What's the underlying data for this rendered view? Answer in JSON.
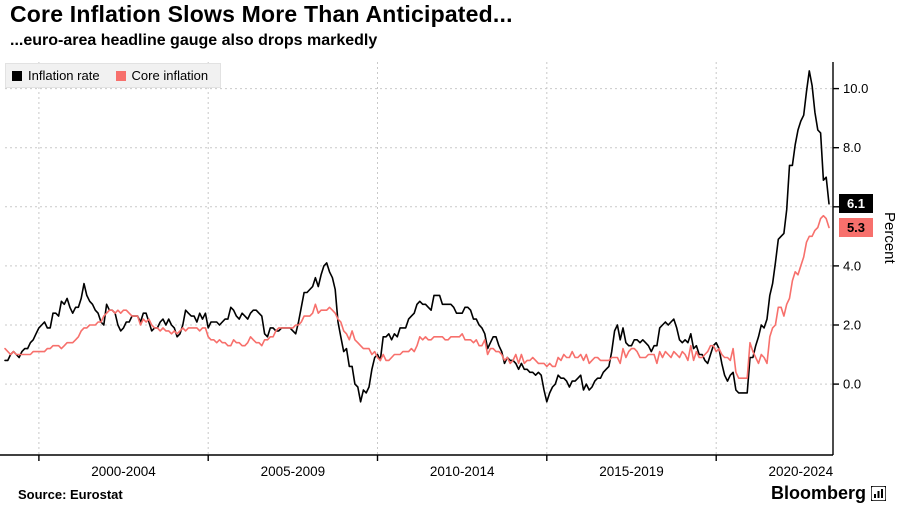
{
  "footer": {
    "source": "Source: Eurostat",
    "brand": "Bloomberg"
  },
  "chart_data": {
    "type": "line",
    "title": "Core Inflation Slows More Than Anticipated...",
    "subtitle": "...euro-area headline gauge also drops markedly",
    "ylabel": "Percent",
    "xlabel": "",
    "grid": true,
    "legend_position": "top-left",
    "x_start": 1999.0,
    "x_frequency": "monthly",
    "xlim": [
      1999.0,
      2023.45
    ],
    "ylim": [
      -2.4,
      10.9
    ],
    "yticks": [
      0,
      2,
      4,
      6,
      8,
      10
    ],
    "ytick_labels": [
      "0.0",
      "2.0",
      "4.0",
      "6.0",
      "8.0",
      "10.0"
    ],
    "xtick_boundaries": [
      2000,
      2005,
      2010,
      2015,
      2020
    ],
    "xtick_labels": [
      "2000-2004",
      "2005-2009",
      "2010-2014",
      "2015-2019",
      "2020-2024"
    ],
    "series": [
      {
        "name": "Inflation rate",
        "color": "#000000",
        "end_label": "6.1",
        "end_label_bg": "#000000",
        "end_label_fg": "#ffffff",
        "values": [
          0.8,
          0.8,
          1.0,
          1.1,
          1.0,
          0.9,
          1.1,
          1.2,
          1.2,
          1.4,
          1.5,
          1.7,
          1.9,
          2.0,
          2.1,
          1.9,
          1.9,
          2.4,
          2.4,
          2.3,
          2.8,
          2.7,
          2.9,
          2.6,
          2.4,
          2.6,
          2.6,
          2.9,
          3.4,
          3.0,
          2.8,
          2.7,
          2.5,
          2.4,
          2.1,
          2.0,
          2.7,
          2.5,
          2.5,
          2.4,
          2.0,
          1.8,
          1.9,
          2.1,
          2.1,
          2.3,
          2.3,
          2.3,
          2.1,
          2.4,
          2.4,
          2.1,
          1.8,
          1.9,
          1.9,
          2.1,
          2.2,
          2.0,
          2.2,
          2.0,
          1.9,
          1.6,
          1.7,
          2.0,
          2.5,
          2.4,
          2.3,
          2.3,
          2.1,
          2.4,
          2.2,
          2.4,
          1.9,
          2.1,
          2.1,
          2.1,
          2.0,
          2.1,
          2.2,
          2.2,
          2.6,
          2.5,
          2.3,
          2.2,
          2.4,
          2.3,
          2.2,
          2.4,
          2.5,
          2.5,
          2.4,
          2.3,
          1.7,
          1.6,
          1.9,
          1.9,
          1.8,
          1.8,
          1.9,
          1.9,
          1.9,
          1.9,
          1.8,
          1.7,
          2.1,
          2.6,
          3.1,
          3.1,
          3.2,
          3.3,
          3.6,
          3.3,
          3.7,
          4.0,
          4.1,
          3.8,
          3.6,
          3.2,
          2.1,
          1.6,
          1.1,
          1.2,
          0.6,
          0.6,
          0.0,
          -0.1,
          -0.6,
          -0.2,
          -0.3,
          -0.1,
          0.5,
          0.9,
          1.0,
          0.8,
          1.6,
          1.6,
          1.7,
          1.5,
          1.7,
          1.6,
          1.9,
          1.9,
          1.9,
          2.2,
          2.3,
          2.4,
          2.7,
          2.8,
          2.7,
          2.7,
          2.6,
          2.5,
          3.0,
          3.0,
          3.0,
          2.7,
          2.7,
          2.7,
          2.7,
          2.6,
          2.4,
          2.4,
          2.4,
          2.6,
          2.6,
          2.5,
          2.2,
          2.2,
          2.0,
          1.9,
          1.7,
          1.2,
          1.4,
          1.6,
          1.6,
          1.3,
          1.1,
          0.7,
          0.9,
          0.8,
          0.8,
          0.7,
          0.5,
          0.7,
          0.5,
          0.5,
          0.4,
          0.4,
          0.3,
          0.4,
          0.3,
          -0.2,
          -0.6,
          -0.3,
          -0.1,
          0.0,
          0.3,
          0.2,
          0.2,
          0.1,
          -0.1,
          0.1,
          0.1,
          0.2,
          0.3,
          -0.2,
          0.0,
          -0.2,
          -0.1,
          0.1,
          0.2,
          0.2,
          0.4,
          0.5,
          0.6,
          1.1,
          1.8,
          2.0,
          1.5,
          1.9,
          1.4,
          1.3,
          1.3,
          1.5,
          1.5,
          1.4,
          1.5,
          1.4,
          1.3,
          1.1,
          1.3,
          1.3,
          1.9,
          2.0,
          2.1,
          2.0,
          2.1,
          2.2,
          1.9,
          1.5,
          1.4,
          1.5,
          1.4,
          1.7,
          1.2,
          1.3,
          1.0,
          1.0,
          0.8,
          0.7,
          1.0,
          1.3,
          1.4,
          1.2,
          0.7,
          0.3,
          0.1,
          0.3,
          0.4,
          -0.2,
          -0.3,
          -0.3,
          -0.3,
          -0.3,
          0.9,
          0.9,
          1.3,
          1.6,
          2.0,
          1.9,
          2.2,
          3.0,
          3.4,
          4.1,
          4.9,
          5.0,
          5.1,
          5.9,
          7.4,
          7.4,
          8.1,
          8.6,
          8.9,
          9.1,
          9.9,
          10.6,
          10.1,
          9.2,
          8.6,
          8.5,
          6.9,
          7.0,
          6.1
        ]
      },
      {
        "name": "Core inflation",
        "color": "#f7706c",
        "end_label": "5.3",
        "end_label_bg": "#f7706c",
        "end_label_fg": "#000000",
        "values": [
          1.2,
          1.1,
          1.0,
          1.1,
          1.0,
          1.0,
          1.0,
          1.0,
          1.0,
          1.0,
          1.1,
          1.1,
          1.1,
          1.1,
          1.1,
          1.2,
          1.2,
          1.3,
          1.3,
          1.3,
          1.2,
          1.3,
          1.4,
          1.4,
          1.4,
          1.5,
          1.6,
          1.8,
          1.9,
          1.9,
          2.0,
          2.0,
          2.0,
          2.1,
          2.1,
          2.3,
          2.4,
          2.5,
          2.5,
          2.4,
          2.5,
          2.4,
          2.5,
          2.5,
          2.4,
          2.3,
          2.3,
          2.3,
          2.0,
          2.2,
          2.1,
          2.2,
          2.0,
          1.9,
          1.9,
          1.8,
          1.9,
          1.8,
          1.8,
          1.7,
          1.8,
          1.7,
          1.8,
          1.9,
          1.8,
          1.9,
          1.9,
          1.9,
          1.9,
          1.8,
          1.9,
          1.9,
          1.6,
          1.5,
          1.5,
          1.4,
          1.5,
          1.4,
          1.4,
          1.3,
          1.3,
          1.5,
          1.4,
          1.4,
          1.3,
          1.3,
          1.4,
          1.6,
          1.5,
          1.4,
          1.4,
          1.3,
          1.5,
          1.5,
          1.6,
          1.6,
          1.8,
          1.9,
          1.9,
          1.9,
          1.9,
          1.9,
          1.9,
          2.0,
          2.0,
          2.1,
          2.3,
          2.3,
          2.3,
          2.4,
          2.7,
          2.4,
          2.5,
          2.5,
          2.5,
          2.6,
          2.5,
          2.4,
          2.2,
          2.1,
          1.8,
          1.7,
          1.5,
          1.8,
          1.5,
          1.4,
          1.3,
          1.2,
          1.2,
          1.2,
          1.0,
          1.1,
          0.9,
          0.8,
          1.0,
          0.8,
          0.8,
          0.9,
          1.0,
          1.0,
          1.0,
          1.1,
          1.1,
          1.1,
          1.2,
          1.1,
          1.3,
          1.6,
          1.5,
          1.6,
          1.5,
          1.5,
          1.6,
          1.6,
          1.6,
          1.6,
          1.5,
          1.5,
          1.6,
          1.6,
          1.6,
          1.6,
          1.7,
          1.5,
          1.5,
          1.5,
          1.4,
          1.5,
          1.3,
          1.3,
          1.5,
          1.0,
          1.2,
          1.2,
          1.1,
          1.1,
          1.0,
          0.8,
          0.9,
          0.7,
          0.8,
          1.0,
          0.7,
          1.0,
          0.7,
          0.8,
          0.8,
          0.9,
          0.8,
          0.7,
          0.7,
          0.7,
          0.6,
          0.7,
          0.6,
          0.6,
          0.9,
          0.8,
          1.0,
          0.9,
          0.9,
          1.1,
          0.9,
          0.9,
          1.0,
          0.8,
          1.0,
          0.7,
          0.8,
          0.9,
          0.9,
          0.8,
          0.8,
          0.8,
          0.8,
          0.9,
          0.9,
          0.9,
          0.7,
          1.2,
          0.9,
          1.1,
          1.2,
          1.2,
          1.1,
          0.9,
          0.9,
          0.9,
          1.0,
          1.0,
          1.0,
          0.7,
          1.1,
          0.9,
          1.1,
          1.0,
          0.9,
          1.1,
          1.0,
          0.9,
          1.1,
          1.0,
          0.8,
          1.3,
          0.8,
          1.1,
          0.9,
          0.9,
          1.0,
          1.1,
          1.3,
          1.3,
          1.1,
          1.2,
          1.0,
          0.9,
          0.9,
          0.8,
          1.2,
          0.4,
          0.2,
          0.2,
          0.2,
          0.2,
          1.4,
          1.1,
          0.9,
          0.7,
          1.0,
          0.9,
          0.7,
          1.6,
          1.9,
          2.0,
          2.6,
          2.6,
          2.3,
          2.7,
          2.9,
          3.5,
          3.8,
          3.7,
          4.0,
          4.3,
          4.8,
          5.0,
          5.0,
          5.2,
          5.3,
          5.6,
          5.7,
          5.6,
          5.3
        ]
      }
    ]
  }
}
